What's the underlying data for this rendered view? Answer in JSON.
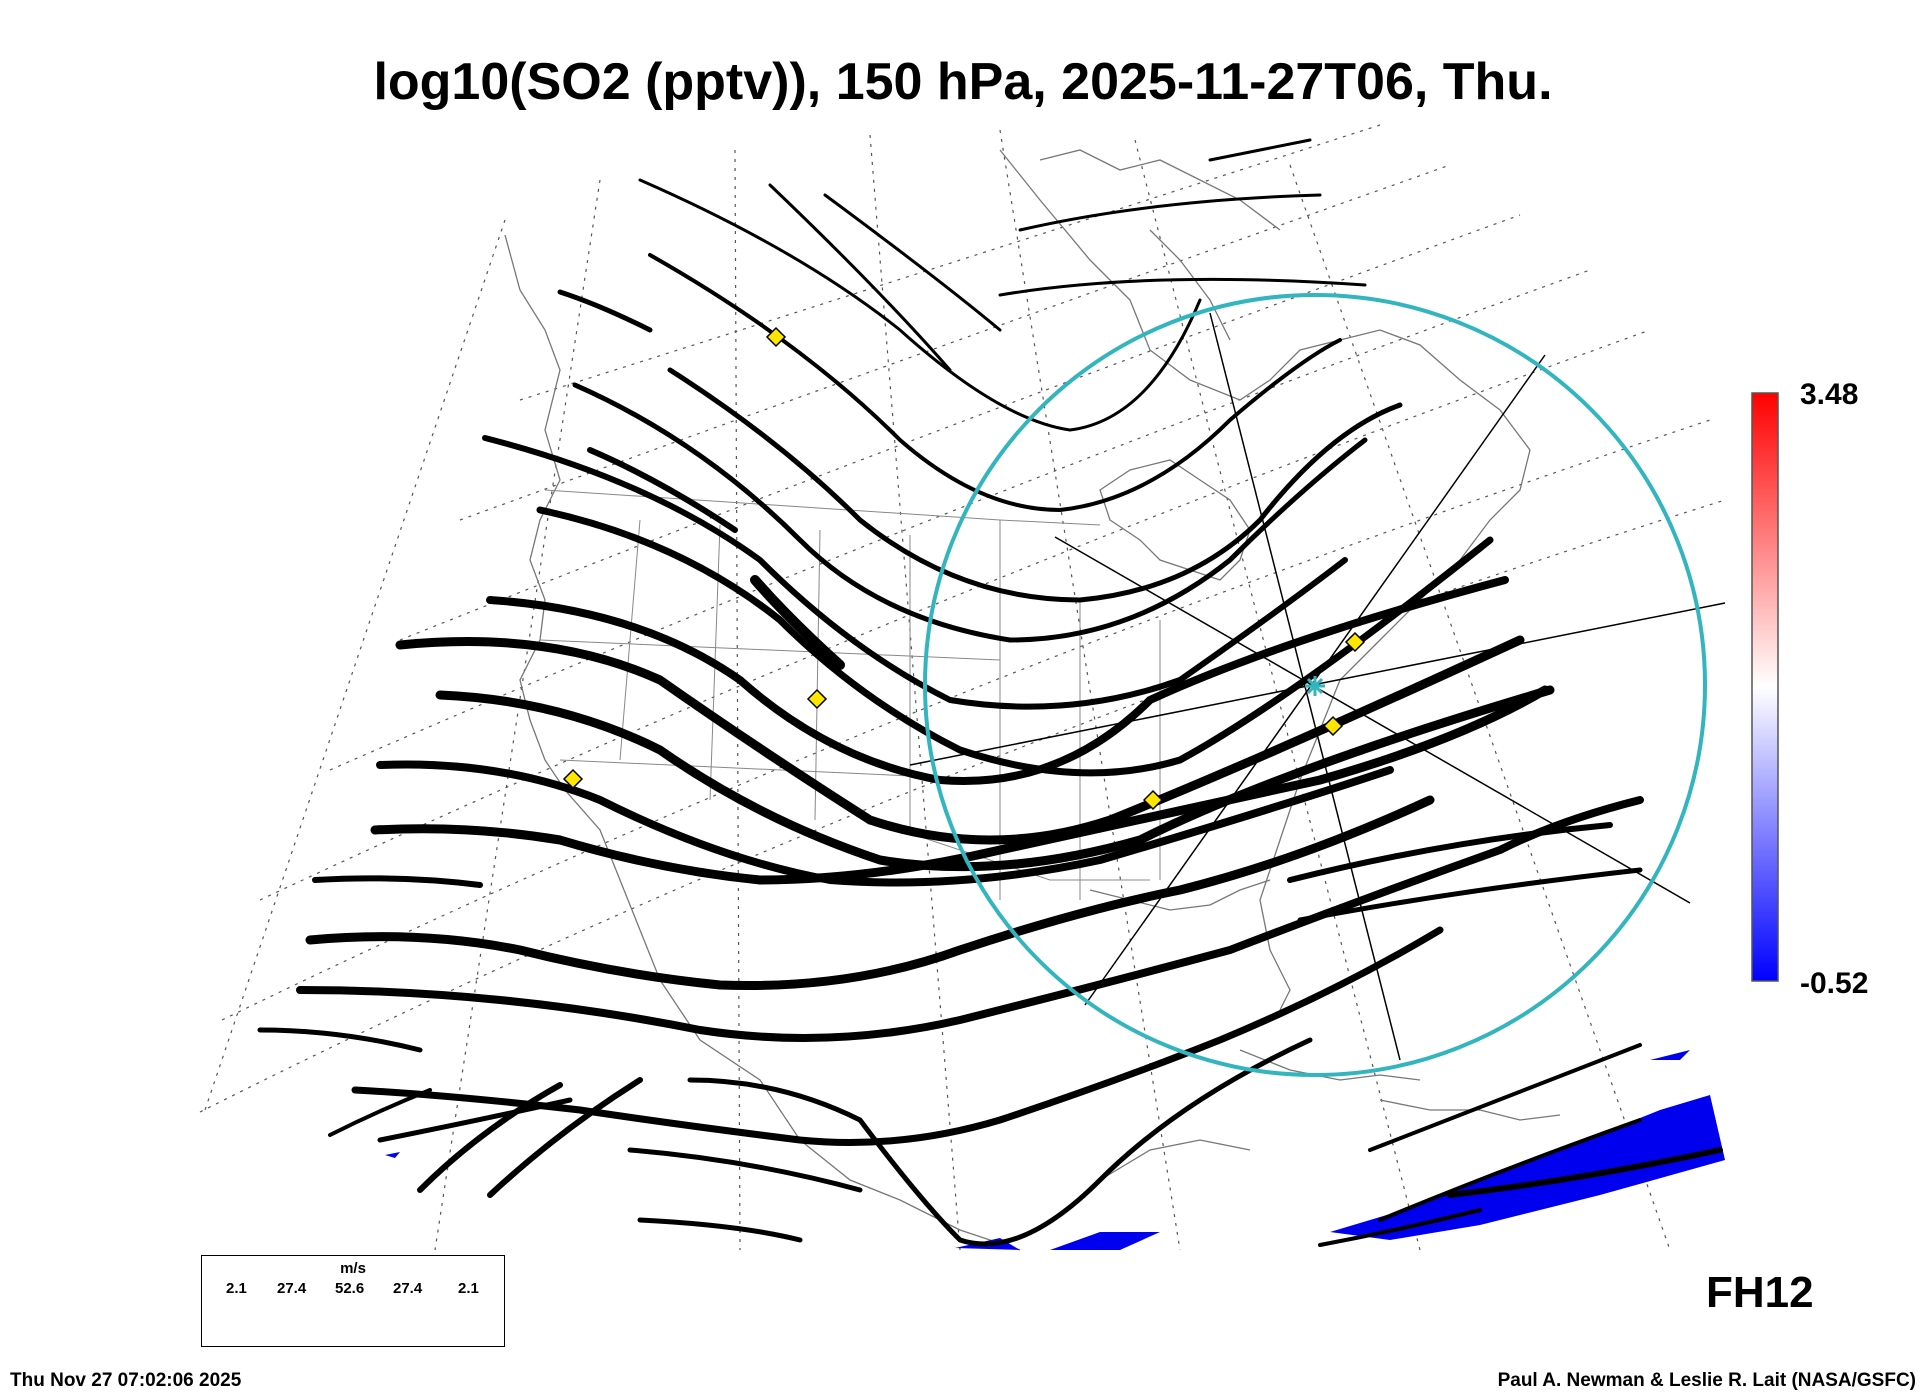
{
  "title": "log10(SO2 (pptv)), 150 hPa, 2025-11-27T06, Thu.",
  "colorbar": {
    "max_label": "3.48",
    "min_label": "-0.52",
    "colors": [
      "#0000ff",
      "#ffffff",
      "#ff0000"
    ]
  },
  "forecast_hour": "FH12",
  "footer": {
    "timestamp": "Thu Nov 27 07:02:06 2025",
    "credit": "Paul A. Newman & Leslie R. Lait (NASA/GSFC)"
  },
  "wind_legend": {
    "unit": "m/s",
    "values": [
      "2.1",
      "27.4",
      "52.6",
      "27.4",
      "2.1"
    ]
  },
  "colors": {
    "streamline": "#000000",
    "circle": "#33b5bf",
    "marker": "#ffe600",
    "so2_low": "#0000ee"
  }
}
